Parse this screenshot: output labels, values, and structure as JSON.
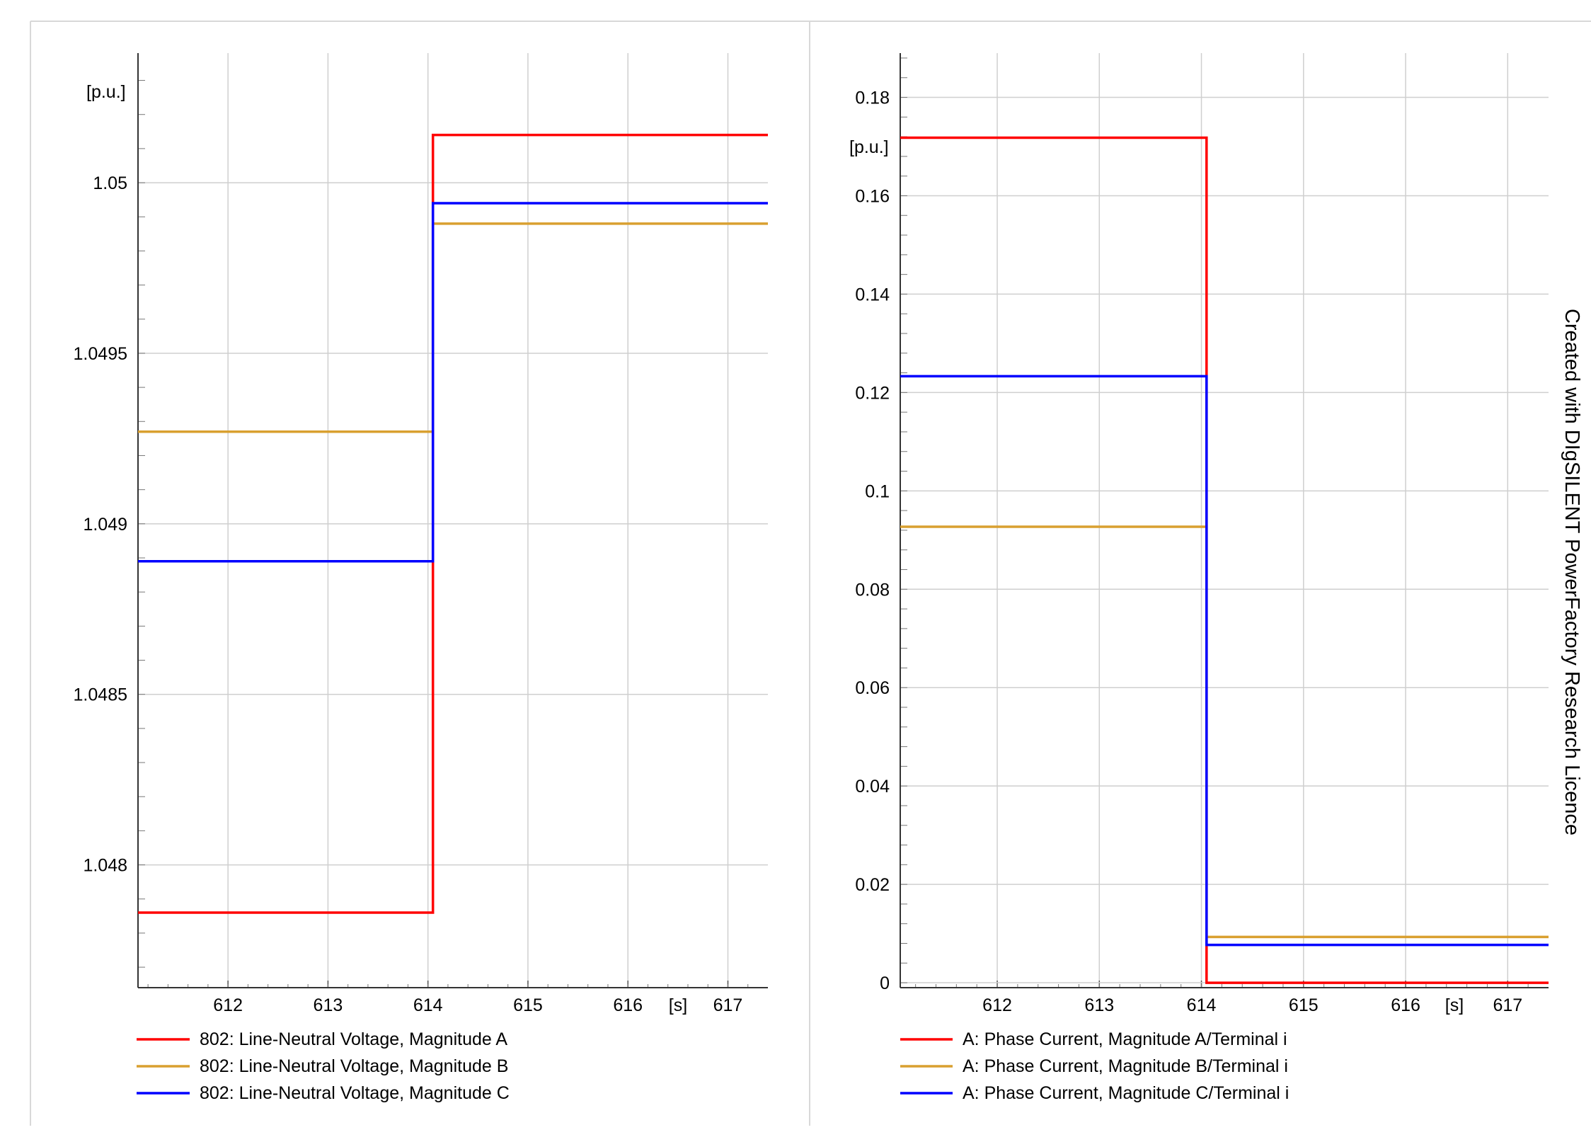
{
  "page": {
    "watermark": "Created with DIgSILENT PowerFactory Research Licence"
  },
  "chart_data": [
    {
      "type": "line",
      "unit_label": "[p.u.]",
      "x_unit_label": "[s]",
      "xlim": [
        611.1,
        617.4
      ],
      "ylim": [
        1.04764,
        1.05038
      ],
      "xticks": [
        612,
        613,
        614,
        615,
        616,
        617
      ],
      "yticks": [
        1.048,
        1.0485,
        1.049,
        1.0495,
        1.05
      ],
      "ytick_labels": [
        "1.048",
        "1.0485",
        "1.049",
        "1.0495",
        "1.05"
      ],
      "grid": true,
      "legend_position": "bottom-left",
      "series": [
        {
          "name": "802: Line-Neutral Voltage, Magnitude A",
          "color": "#ff0000",
          "points": [
            [
              611.1,
              1.04786
            ],
            [
              614.05,
              1.04786
            ],
            [
              614.05,
              1.05014
            ],
            [
              617.4,
              1.05014
            ]
          ]
        },
        {
          "name": "802: Line-Neutral Voltage, Magnitude B",
          "color": "#d9a030",
          "points": [
            [
              611.1,
              1.04927
            ],
            [
              614.05,
              1.04927
            ],
            [
              614.05,
              1.04988
            ],
            [
              617.4,
              1.04988
            ]
          ]
        },
        {
          "name": "802: Line-Neutral Voltage, Magnitude C",
          "color": "#0000ff",
          "points": [
            [
              611.1,
              1.04889
            ],
            [
              614.05,
              1.04889
            ],
            [
              614.05,
              1.04994
            ],
            [
              617.4,
              1.04994
            ]
          ]
        }
      ]
    },
    {
      "type": "line",
      "unit_label": "[p.u.]",
      "x_unit_label": "[s]",
      "xlim": [
        611.05,
        617.4
      ],
      "ylim": [
        -0.001,
        0.189
      ],
      "xticks": [
        612,
        613,
        614,
        615,
        616,
        617
      ],
      "yticks": [
        0,
        0.02,
        0.04,
        0.06,
        0.08,
        0.1,
        0.12,
        0.14,
        0.16,
        0.18
      ],
      "ytick_labels": [
        "0",
        "0.02",
        "0.04",
        "0.06",
        "0.08",
        "0.1",
        "0.12",
        "0.14",
        "0.16",
        "0.18"
      ],
      "grid": true,
      "legend_position": "bottom-left",
      "series": [
        {
          "name": "A: Phase Current, Magnitude A/Terminal i",
          "color": "#ff0000",
          "points": [
            [
              611.05,
              0.1718
            ],
            [
              614.05,
              0.1718
            ],
            [
              614.05,
              0.0
            ],
            [
              617.4,
              0.0
            ]
          ]
        },
        {
          "name": "A: Phase Current, Magnitude B/Terminal i",
          "color": "#d9a030",
          "points": [
            [
              611.05,
              0.0927
            ],
            [
              614.05,
              0.0927
            ],
            [
              614.05,
              0.0093
            ],
            [
              617.4,
              0.0093
            ]
          ]
        },
        {
          "name": "A: Phase Current, Magnitude C/Terminal i",
          "color": "#0000ff",
          "points": [
            [
              611.05,
              0.1233
            ],
            [
              614.05,
              0.1233
            ],
            [
              614.05,
              0.0077
            ],
            [
              617.4,
              0.0077
            ]
          ]
        }
      ]
    }
  ]
}
